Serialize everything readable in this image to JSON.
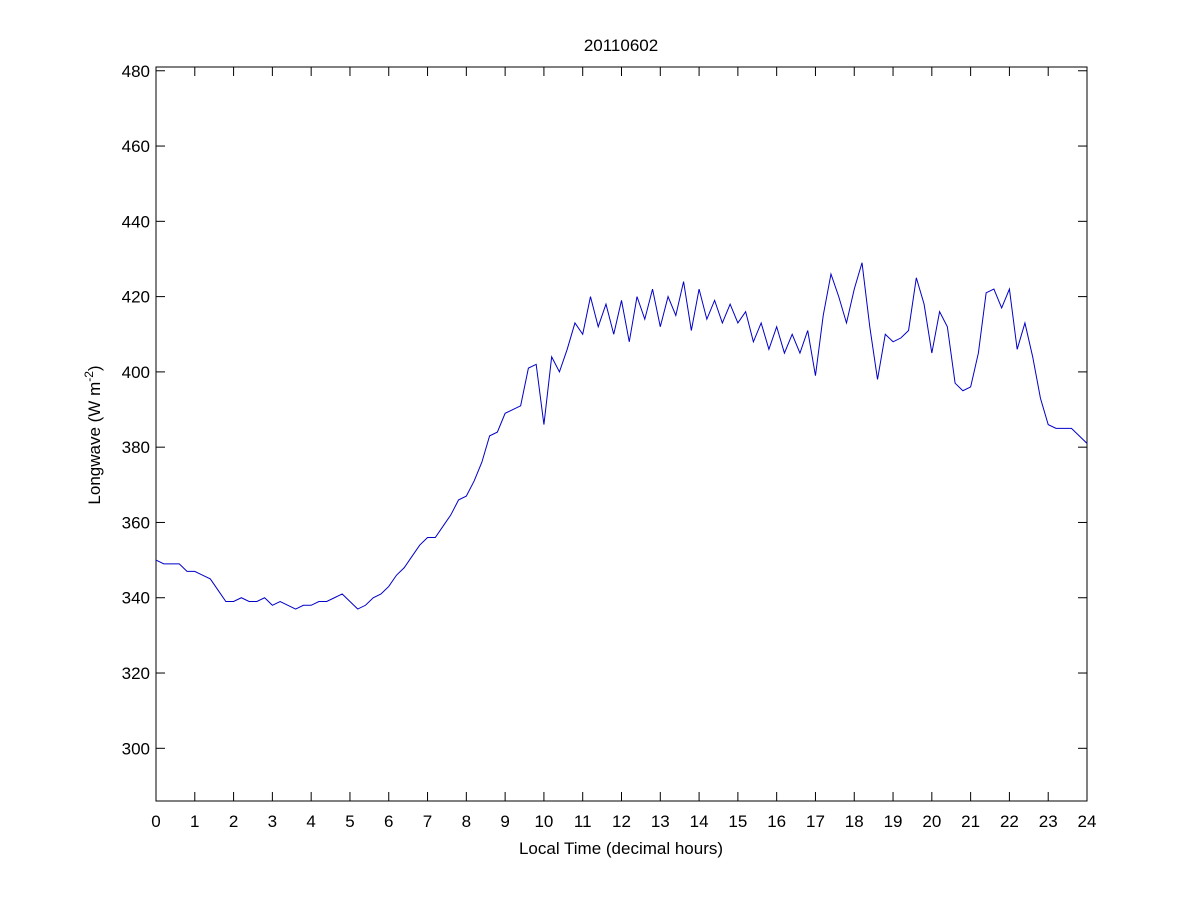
{
  "chart_data": {
    "type": "line",
    "title": "20110602",
    "xlabel": "Local Time (decimal hours)",
    "ylabel": {
      "text": "Longwave (W m",
      "superscript": "-2",
      "suffix": ")"
    },
    "color": "#0000c8",
    "x": [
      0,
      0.2,
      0.4,
      0.6,
      0.8,
      1,
      1.2,
      1.4,
      1.6,
      1.8,
      2,
      2.2,
      2.4,
      2.6,
      2.8,
      3,
      3.2,
      3.4,
      3.6,
      3.8,
      4,
      4.2,
      4.4,
      4.6,
      4.8,
      5,
      5.2,
      5.4,
      5.6,
      5.8,
      6,
      6.2,
      6.4,
      6.6,
      6.8,
      7,
      7.2,
      7.4,
      7.6,
      7.8,
      8,
      8.2,
      8.4,
      8.6,
      8.8,
      9,
      9.2,
      9.4,
      9.6,
      9.8,
      10,
      10.2,
      10.4,
      10.6,
      10.8,
      11,
      11.2,
      11.4,
      11.6,
      11.8,
      12,
      12.2,
      12.4,
      12.6,
      12.8,
      13,
      13.2,
      13.4,
      13.6,
      13.8,
      14,
      14.2,
      14.4,
      14.6,
      14.8,
      15,
      15.2,
      15.4,
      15.6,
      15.8,
      16,
      16.2,
      16.4,
      16.6,
      16.8,
      17,
      17.2,
      17.4,
      17.6,
      17.8,
      18,
      18.2,
      18.4,
      18.6,
      18.8,
      19,
      19.2,
      19.4,
      19.6,
      19.8,
      20,
      20.2,
      20.4,
      20.6,
      20.8,
      21,
      21.2,
      21.4,
      21.6,
      21.8,
      22,
      22.2,
      22.4,
      22.6,
      22.8,
      23,
      23.2,
      23.4,
      23.6,
      23.8,
      24
    ],
    "values": [
      350,
      349,
      349,
      349,
      347,
      347,
      346,
      345,
      342,
      339,
      339,
      340,
      339,
      339,
      340,
      338,
      339,
      338,
      337,
      338,
      338,
      339,
      339,
      340,
      341,
      339,
      337,
      338,
      340,
      341,
      343,
      346,
      348,
      351,
      354,
      356,
      356,
      359,
      362,
      366,
      367,
      371,
      376,
      383,
      384,
      389,
      390,
      391,
      401,
      402,
      386,
      404,
      400,
      406,
      413,
      410,
      420,
      412,
      418,
      410,
      419,
      408,
      420,
      414,
      422,
      412,
      420,
      415,
      424,
      411,
      422,
      414,
      419,
      413,
      418,
      413,
      416,
      408,
      413,
      406,
      412,
      405,
      410,
      405,
      411,
      399,
      415,
      426,
      420,
      413,
      422,
      429,
      412,
      398,
      410,
      408,
      409,
      411,
      425,
      418,
      405,
      416,
      412,
      397,
      395,
      396,
      405,
      421,
      422,
      417,
      422,
      406,
      413,
      404,
      393,
      386,
      385,
      385,
      385,
      383,
      381
    ],
    "xlim": [
      0,
      24
    ],
    "ylim": [
      286,
      481
    ],
    "xticks": [
      0,
      1,
      2,
      3,
      4,
      5,
      6,
      7,
      8,
      9,
      10,
      11,
      12,
      13,
      14,
      15,
      16,
      17,
      18,
      19,
      20,
      21,
      22,
      23,
      24
    ],
    "yticks": [
      300,
      320,
      340,
      360,
      380,
      400,
      420,
      440,
      460,
      480
    ]
  }
}
